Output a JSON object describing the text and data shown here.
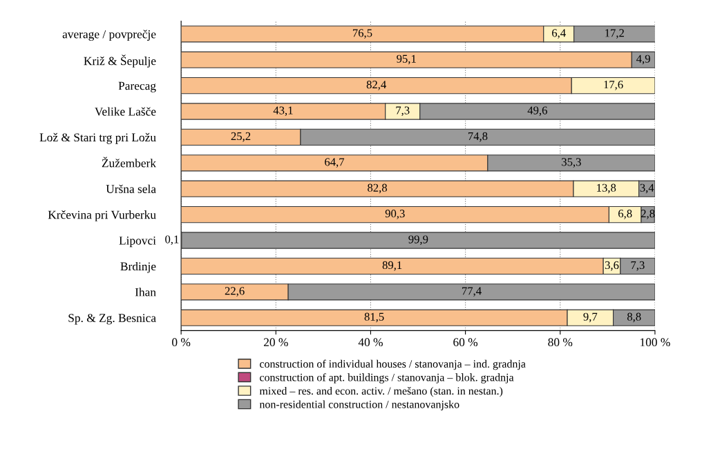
{
  "chart_data": {
    "type": "bar",
    "orientation": "horizontal",
    "stacked": true,
    "categories": [
      "average / povprečje",
      "Križ & Šepulje",
      "Parecag",
      "Velike Lašče",
      "Lož & Stari trg pri Ložu",
      "Žužemberk",
      "Uršna sela",
      "Krčevina pri Vurberku",
      "Lipovci",
      "Brdinje",
      "Ihan",
      "Sp. & Zg. Besnica"
    ],
    "series": [
      {
        "name": "construction of individual houses / stanovanja – ind. gradnja",
        "color": "#f9bf8c",
        "values": [
          76.5,
          95.1,
          82.4,
          43.1,
          25.2,
          64.7,
          82.8,
          90.3,
          0.1,
          89.1,
          22.6,
          81.5
        ],
        "value_labels": [
          "76,5",
          "95,1",
          "82,4",
          "43,1",
          "25,2",
          "64,7",
          "82,8",
          "90,3",
          "0,1",
          "89,1",
          "22,6",
          "81,5"
        ]
      },
      {
        "name": "construction of apt. buildings / stanovanja – blok. gradnja",
        "color": "#c04a7e",
        "values": [
          null,
          null,
          null,
          null,
          null,
          null,
          null,
          null,
          null,
          null,
          null,
          null
        ]
      },
      {
        "name": "mixed – res. and econ. activ. / mešano (stan. in nestan.)",
        "color": "#fff2c2",
        "values": [
          6.4,
          null,
          17.6,
          7.3,
          null,
          null,
          13.8,
          6.8,
          null,
          3.6,
          null,
          9.7
        ],
        "value_labels": [
          "6,4",
          null,
          "17,6",
          "7,3",
          null,
          null,
          "13,8",
          "6,8",
          null,
          "3,6",
          null,
          "9,7"
        ]
      },
      {
        "name": "non-residential construction / nestanovanjsko",
        "color": "#9a9a9a",
        "values": [
          17.2,
          4.9,
          null,
          49.6,
          74.8,
          35.3,
          3.4,
          2.8,
          99.9,
          7.3,
          77.4,
          8.8
        ],
        "value_labels": [
          "17,2",
          "4,9",
          null,
          "49,6",
          "74,8",
          "35,3",
          "3,4",
          "2,8",
          "99,9",
          "7,3",
          "77,4",
          "8,8"
        ]
      }
    ],
    "xlim": [
      0,
      100
    ],
    "xticks": [
      {
        "value": 0,
        "label": "0 %"
      },
      {
        "value": 20,
        "label": "20 %"
      },
      {
        "value": 40,
        "label": "40 %"
      },
      {
        "value": 60,
        "label": "60 %"
      },
      {
        "value": 80,
        "label": "80 %"
      },
      {
        "value": 100,
        "label": "100 %"
      }
    ],
    "grid": "x",
    "legend": "bottom"
  }
}
